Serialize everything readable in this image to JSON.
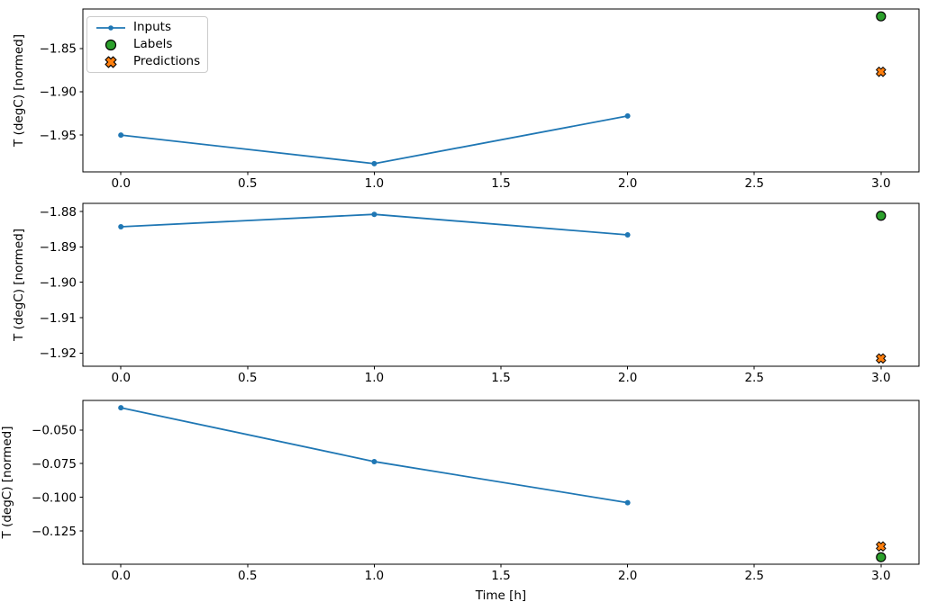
{
  "figure": {
    "kind": "matplotlib-style-figure",
    "background": "#ffffff",
    "text_color": "#000000",
    "spine_color": "#000000"
  },
  "legend": {
    "position": "upper-left-of-first-subplot",
    "border_color": "#cccccc",
    "items": [
      {
        "label": "Inputs",
        "marker": "line-with-dot",
        "color": "#1f77b4"
      },
      {
        "label": "Labels",
        "marker": "filled-circle",
        "color": "#2ca02c",
        "edge_color": "#000000"
      },
      {
        "label": "Predictions",
        "marker": "filled-x",
        "color": "#ff7f0e",
        "edge_color": "#000000"
      }
    ]
  },
  "chart_data": [
    {
      "type": "line",
      "subplot": 1,
      "title": "",
      "xlabel": "",
      "ylabel": "T (degC) [normed]",
      "xlim": [
        -0.15,
        3.15
      ],
      "ylim": [
        -1.9925,
        -1.8045
      ],
      "grid": false,
      "xticks": [
        0.0,
        0.5,
        1.0,
        1.5,
        2.0,
        2.5,
        3.0
      ],
      "xtick_labels": [
        "0.0",
        "0.5",
        "1.0",
        "1.5",
        "2.0",
        "2.5",
        "3.0"
      ],
      "yticks": [
        -1.85,
        -1.9,
        -1.95
      ],
      "ytick_labels": [
        "−1.85",
        "−1.90",
        "−1.95"
      ],
      "series": [
        {
          "name": "Inputs",
          "kind": "line",
          "marker": "dot",
          "color": "#1f77b4",
          "x": [
            0,
            1,
            2
          ],
          "y": [
            -1.95,
            -1.983,
            -1.928
          ]
        },
        {
          "name": "Labels",
          "kind": "scatter",
          "marker": "circle",
          "color": "#2ca02c",
          "edge_color": "#000000",
          "x": [
            3
          ],
          "y": [
            -1.813
          ]
        },
        {
          "name": "Predictions",
          "kind": "scatter",
          "marker": "X",
          "color": "#ff7f0e",
          "edge_color": "#000000",
          "x": [
            3
          ],
          "y": [
            -1.877
          ]
        }
      ]
    },
    {
      "type": "line",
      "subplot": 2,
      "title": "",
      "xlabel": "",
      "ylabel": "T (degC) [normed]",
      "xlim": [
        -0.15,
        3.15
      ],
      "ylim": [
        -1.9237,
        -1.8777
      ],
      "grid": false,
      "xticks": [
        0.0,
        0.5,
        1.0,
        1.5,
        2.0,
        2.5,
        3.0
      ],
      "xtick_labels": [
        "0.0",
        "0.5",
        "1.0",
        "1.5",
        "2.0",
        "2.5",
        "3.0"
      ],
      "yticks": [
        -1.88,
        -1.89,
        -1.9,
        -1.91,
        -1.92
      ],
      "ytick_labels": [
        "−1.88",
        "−1.89",
        "−1.90",
        "−1.91",
        "−1.92"
      ],
      "series": [
        {
          "name": "Inputs",
          "kind": "line",
          "marker": "dot",
          "color": "#1f77b4",
          "x": [
            0,
            1,
            2
          ],
          "y": [
            -1.8843,
            -1.8808,
            -1.8866
          ]
        },
        {
          "name": "Labels",
          "kind": "scatter",
          "marker": "circle",
          "color": "#2ca02c",
          "edge_color": "#000000",
          "x": [
            3
          ],
          "y": [
            -1.8812
          ]
        },
        {
          "name": "Predictions",
          "kind": "scatter",
          "marker": "X",
          "color": "#ff7f0e",
          "edge_color": "#000000",
          "x": [
            3
          ],
          "y": [
            -1.9215
          ]
        }
      ]
    },
    {
      "type": "line",
      "subplot": 3,
      "title": "",
      "xlabel": "Time [h]",
      "ylabel": "T (degC) [normed]",
      "xlim": [
        -0.15,
        3.15
      ],
      "ylim": [
        -0.1497,
        -0.0281
      ],
      "grid": false,
      "xticks": [
        0.0,
        0.5,
        1.0,
        1.5,
        2.0,
        2.5,
        3.0
      ],
      "xtick_labels": [
        "0.0",
        "0.5",
        "1.0",
        "1.5",
        "2.0",
        "2.5",
        "3.0"
      ],
      "yticks": [
        -0.05,
        -0.075,
        -0.1,
        -0.125
      ],
      "ytick_labels": [
        "−0.050",
        "−0.075",
        "−0.100",
        "−0.125"
      ],
      "series": [
        {
          "name": "Inputs",
          "kind": "line",
          "marker": "dot",
          "color": "#1f77b4",
          "x": [
            0,
            1,
            2
          ],
          "y": [
            -0.0335,
            -0.0735,
            -0.104
          ]
        },
        {
          "name": "Labels",
          "kind": "scatter",
          "marker": "circle",
          "color": "#2ca02c",
          "edge_color": "#000000",
          "x": [
            3
          ],
          "y": [
            -0.1445
          ]
        },
        {
          "name": "Predictions",
          "kind": "scatter",
          "marker": "X",
          "color": "#ff7f0e",
          "edge_color": "#000000",
          "x": [
            3
          ],
          "y": [
            -0.1365
          ]
        }
      ]
    }
  ]
}
